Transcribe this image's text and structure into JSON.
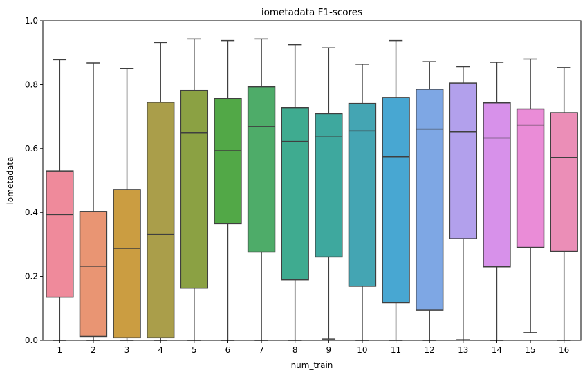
{
  "chart_data": {
    "type": "box",
    "title": "iometadata F1-scores",
    "xlabel": "num_train",
    "ylabel": "iometadata",
    "ylim": [
      0,
      1
    ],
    "yticks": [
      "0.0",
      "0.2",
      "0.4",
      "0.6",
      "0.8",
      "1.0"
    ],
    "grid": false,
    "categories": [
      "1",
      "2",
      "3",
      "4",
      "5",
      "6",
      "7",
      "8",
      "9",
      "10",
      "11",
      "12",
      "13",
      "14",
      "15",
      "16"
    ],
    "boxes": [
      {
        "min": 0.0,
        "q1": 0.135,
        "median": 0.393,
        "q3": 0.53,
        "max": 0.878
      },
      {
        "min": 0.0,
        "q1": 0.012,
        "median": 0.232,
        "q3": 0.403,
        "max": 0.868
      },
      {
        "min": 0.0,
        "q1": 0.008,
        "median": 0.288,
        "q3": 0.472,
        "max": 0.85
      },
      {
        "min": 0.0,
        "q1": 0.008,
        "median": 0.332,
        "q3": 0.745,
        "max": 0.932
      },
      {
        "min": 0.0,
        "q1": 0.163,
        "median": 0.65,
        "q3": 0.782,
        "max": 0.943
      },
      {
        "min": 0.0,
        "q1": 0.365,
        "median": 0.593,
        "q3": 0.757,
        "max": 0.938
      },
      {
        "min": 0.0,
        "q1": 0.276,
        "median": 0.669,
        "q3": 0.793,
        "max": 0.943
      },
      {
        "min": 0.0,
        "q1": 0.189,
        "median": 0.622,
        "q3": 0.728,
        "max": 0.925
      },
      {
        "min": 0.004,
        "q1": 0.261,
        "median": 0.639,
        "q3": 0.709,
        "max": 0.915
      },
      {
        "min": 0.0,
        "q1": 0.169,
        "median": 0.655,
        "q3": 0.741,
        "max": 0.864
      },
      {
        "min": 0.0,
        "q1": 0.118,
        "median": 0.574,
        "q3": 0.76,
        "max": 0.938
      },
      {
        "min": 0.0,
        "q1": 0.095,
        "median": 0.661,
        "q3": 0.786,
        "max": 0.872
      },
      {
        "min": 0.002,
        "q1": 0.318,
        "median": 0.652,
        "q3": 0.805,
        "max": 0.856
      },
      {
        "min": 0.0,
        "q1": 0.23,
        "median": 0.633,
        "q3": 0.743,
        "max": 0.87
      },
      {
        "min": 0.024,
        "q1": 0.291,
        "median": 0.674,
        "q3": 0.724,
        "max": 0.88
      },
      {
        "min": 0.0,
        "q1": 0.278,
        "median": 0.572,
        "q3": 0.712,
        "max": 0.853
      }
    ],
    "colors": [
      "#ef8a9b",
      "#e99573",
      "#cb9d41",
      "#aa9e4a",
      "#8ba143",
      "#52a847",
      "#4eac69",
      "#3fab90",
      "#3ea89e",
      "#44a5b3",
      "#48a7d2",
      "#7ea7e4",
      "#b2a0ec",
      "#d791ea",
      "#ea8cd7",
      "#eb8eb7"
    ],
    "line_color": "#3f3f3f"
  }
}
